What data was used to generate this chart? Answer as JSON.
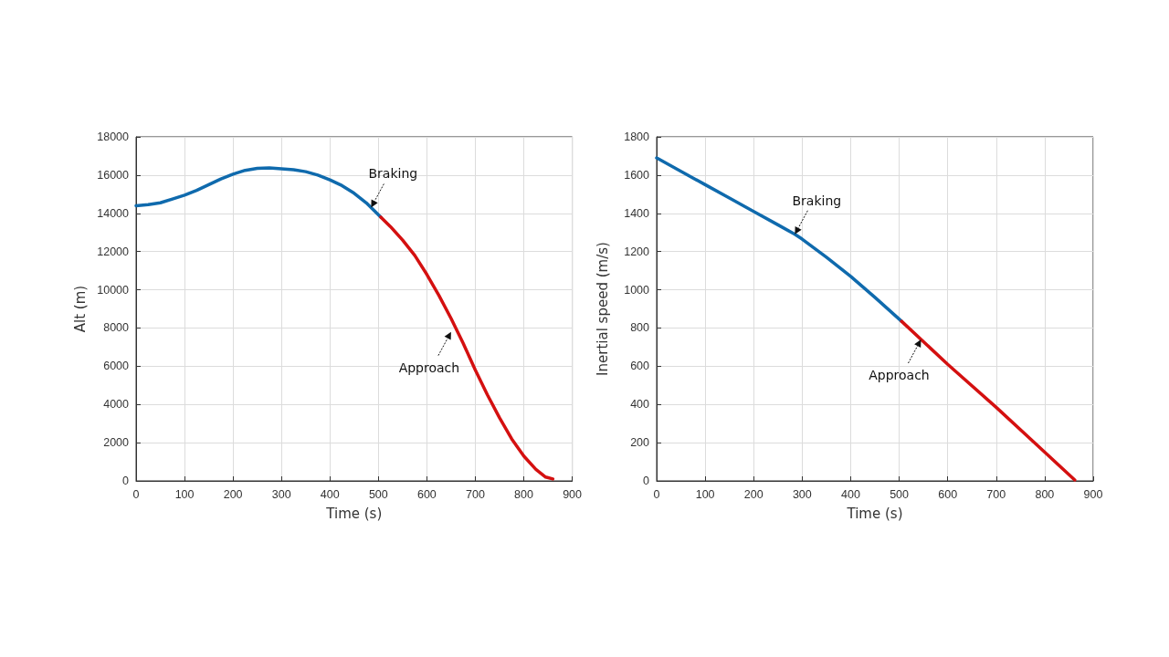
{
  "chart_data": [
    {
      "type": "line",
      "xlabel": "Time (s)",
      "ylabel": "Alt (m)",
      "xlim": [
        0,
        900
      ],
      "xticks": [
        0,
        100,
        200,
        300,
        400,
        500,
        600,
        700,
        800,
        900
      ],
      "ylim": [
        0,
        18000
      ],
      "yticks": [
        0,
        2000,
        4000,
        6000,
        8000,
        10000,
        12000,
        14000,
        16000,
        18000
      ],
      "grid": true,
      "line_style": "solid",
      "marker": "none",
      "series": [
        {
          "color": "#0f6aad",
          "x": [
            0,
            25,
            50,
            75,
            100,
            125,
            150,
            175,
            200,
            225,
            250,
            275,
            300,
            325,
            350,
            375,
            400,
            425,
            450,
            475,
            505
          ],
          "values": [
            14400,
            14450,
            14550,
            14750,
            14950,
            15200,
            15500,
            15800,
            16050,
            16250,
            16350,
            16380,
            16330,
            16280,
            16180,
            16000,
            15750,
            15450,
            15050,
            14550,
            13800
          ]
        },
        {
          "color": "#d41010",
          "x": [
            505,
            525,
            550,
            575,
            600,
            625,
            650,
            675,
            700,
            725,
            750,
            775,
            800,
            825,
            845,
            860
          ],
          "values": [
            13800,
            13300,
            12600,
            11800,
            10800,
            9700,
            8500,
            7200,
            5800,
            4500,
            3300,
            2200,
            1300,
            600,
            200,
            100
          ]
        }
      ],
      "annotations": [
        {
          "text": "Braking",
          "x": 485,
          "y": 14300
        },
        {
          "text": "Approach",
          "x": 650,
          "y": 7800
        }
      ]
    },
    {
      "type": "line",
      "xlabel": "Time (s)",
      "ylabel": "Inertial speed (m/s)",
      "xlim": [
        0,
        900
      ],
      "xticks": [
        0,
        100,
        200,
        300,
        400,
        500,
        600,
        700,
        800,
        900
      ],
      "ylim": [
        0,
        1800
      ],
      "yticks": [
        0,
        200,
        400,
        600,
        800,
        1000,
        1200,
        1400,
        1600,
        1800
      ],
      "grid": true,
      "line_style": "solid",
      "marker": "none",
      "series": [
        {
          "color": "#0f6aad",
          "x": [
            0,
            50,
            100,
            150,
            200,
            250,
            285,
            300,
            350,
            400,
            450,
            505
          ],
          "values": [
            1690,
            1620,
            1550,
            1480,
            1410,
            1340,
            1290,
            1265,
            1170,
            1070,
            960,
            835
          ]
        },
        {
          "color": "#d41010",
          "x": [
            505,
            600,
            700,
            800,
            862
          ],
          "values": [
            835,
            610,
            385,
            150,
            5
          ]
        }
      ],
      "annotations": [
        {
          "text": "Braking",
          "x": 285,
          "y": 1290
        },
        {
          "text": "Approach",
          "x": 545,
          "y": 740
        }
      ]
    }
  ]
}
